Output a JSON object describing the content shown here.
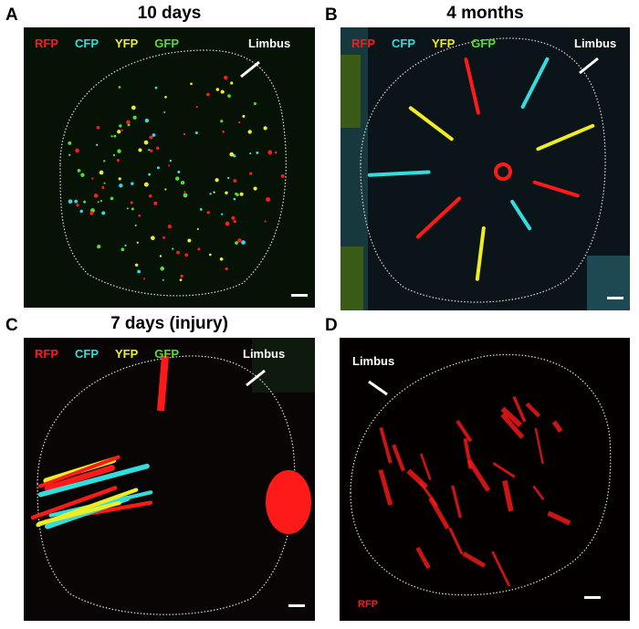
{
  "panels": [
    {
      "letter": "A",
      "title": "10 days",
      "legend": [
        "RFP",
        "CFP",
        "YFP",
        "GFP"
      ],
      "limbus": "Limbus"
    },
    {
      "letter": "B",
      "title": "4 months",
      "legend": [
        "RFP",
        "CFP",
        "YFP",
        "GFP"
      ],
      "limbus": "Limbus"
    },
    {
      "letter": "C",
      "title": "7 days (injury)",
      "legend": [
        "RFP",
        "CFP",
        "YFP",
        "GFP"
      ],
      "limbus": "Limbus"
    },
    {
      "letter": "D",
      "title": "",
      "legend": [
        "RFP"
      ],
      "limbus": "Limbus"
    }
  ],
  "colors": {
    "RFP": "#ff1a1a",
    "CFP": "#33dddd",
    "YFP": "#eeee22",
    "GFP": "#55dd33"
  }
}
